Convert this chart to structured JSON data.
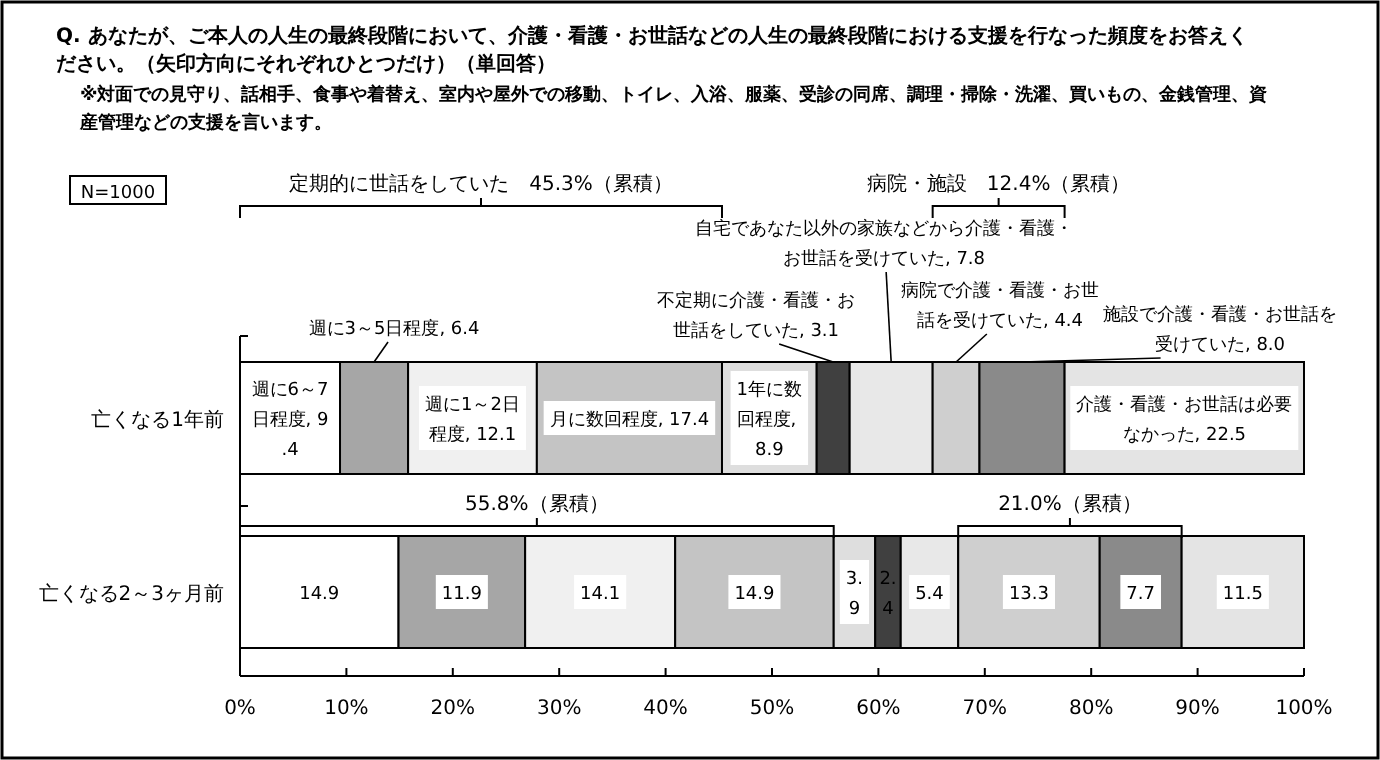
{
  "chart_data": {
    "type": "bar",
    "orientation": "horizontal",
    "stacked": true,
    "title": "Q. あなたが、ご本人の人生の最終段階において、介護・看護・お世話などの人生の最終段階における支援を行なった頻度をお答えください。（矢印方向にそれぞれひとつだけ）（単回答）",
    "subtitle": "※対面での見守り、話相手、食事や着替え、室内や屋外での移動、トイレ、入浴、服薬、受診の同席、調理・掃除・洗濯、買いもの、金銭管理、資産管理などの支援を言います。",
    "categories": [
      "亡くなる1年前",
      "亡くなる2～3ヶ月前"
    ],
    "series": [
      {
        "color": "#ffffff",
        "values": [
          9.4,
          14.9
        ],
        "value_labels": [
          "週に6～7日程度, 9.4",
          "14.9"
        ]
      },
      {
        "color": "#a6a6a6",
        "values": [
          6.4,
          11.9
        ],
        "value_labels": [
          "週に3～5日程度, 6.4",
          "11.9"
        ]
      },
      {
        "color": "#f0f0f0",
        "values": [
          12.1,
          14.1
        ],
        "value_labels": [
          "週に1～2日程度, 12.1",
          "14.1"
        ]
      },
      {
        "color": "#c4c4c4",
        "values": [
          17.4,
          14.9
        ],
        "value_labels": [
          "月に数回程度, 17.4",
          "14.9"
        ]
      },
      {
        "color": "#dedede",
        "values": [
          8.9,
          3.9
        ],
        "value_labels": [
          "1年に数回程度, 8.9",
          "3.9"
        ]
      },
      {
        "color": "#404040",
        "values": [
          3.1,
          2.4
        ],
        "value_labels": [
          "不定期に介護・看護・お世話をしていた, 3.1",
          "2.4"
        ]
      },
      {
        "color": "#e8e8e8",
        "values": [
          7.8,
          5.4
        ],
        "value_labels": [
          "自宅であなた以外の家族などから介護・看護・お世話を受けていた, 7.8",
          "5.4"
        ]
      },
      {
        "color": "#cfcfcf",
        "values": [
          4.4,
          13.3
        ],
        "value_labels": [
          "病院で介護・看護・お世話を受けていた, 4.4",
          "13.3"
        ]
      },
      {
        "color": "#8a8a8a",
        "values": [
          8.0,
          7.7
        ],
        "value_labels": [
          "施設で介護・看護・お世話を受けていた, 8.0",
          "7.7"
        ]
      },
      {
        "color": "#e4e4e4",
        "values": [
          22.5,
          11.5
        ],
        "value_labels": [
          "介護・看護・お世話は必要なかった, 22.5",
          "11.5"
        ]
      }
    ],
    "xlim": [
      0,
      100
    ],
    "xticks": [
      {
        "value": 0,
        "label": "0%"
      },
      {
        "value": 10,
        "label": "10%"
      },
      {
        "value": 20,
        "label": "20%"
      },
      {
        "value": 30,
        "label": "30%"
      },
      {
        "value": 40,
        "label": "40%"
      },
      {
        "value": 50,
        "label": "50%"
      },
      {
        "value": 60,
        "label": "60%"
      },
      {
        "value": 70,
        "label": "70%"
      },
      {
        "value": 80,
        "label": "80%"
      },
      {
        "value": 90,
        "label": "90%"
      },
      {
        "value": 100,
        "label": "100%"
      }
    ],
    "annotations": [
      "N=1000",
      "定期的に世話をしていた　45.3%（累積）",
      "病院・施設　12.4%（累積）",
      "55.8%（累積）",
      "21.0%（累積）"
    ]
  }
}
